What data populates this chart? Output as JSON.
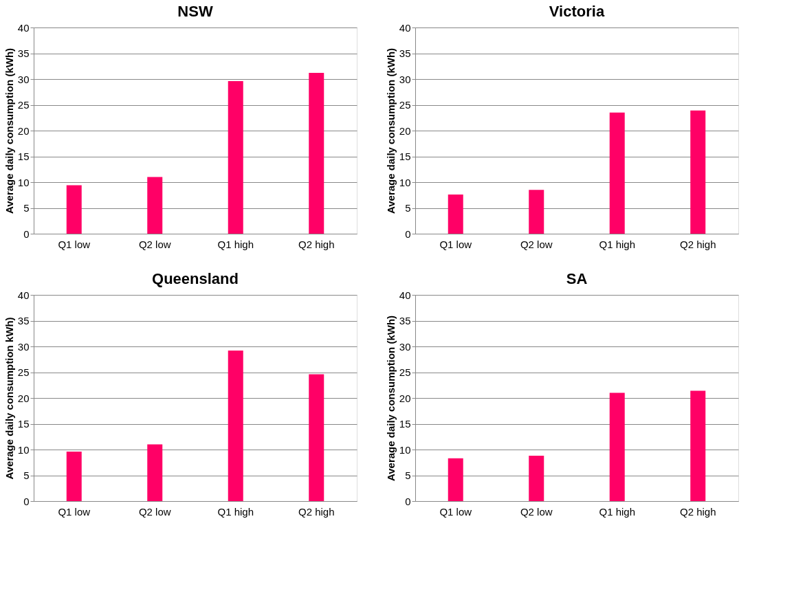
{
  "chart_data": [
    {
      "type": "bar",
      "title": "NSW",
      "ylabel": "Average daily consumption  (kWh)",
      "categories": [
        "Q1 low",
        "Q2 low",
        "Q1 high",
        "Q2 high"
      ],
      "values": [
        9.4,
        11,
        29.6,
        31.2
      ],
      "color": "#ff0066",
      "ylim": [
        0,
        40
      ],
      "yticks": [
        0,
        5,
        10,
        15,
        20,
        25,
        30,
        35,
        40
      ],
      "grid": "y"
    },
    {
      "type": "bar",
      "title": "Victoria",
      "ylabel": "Average daily consumption  (kWh)",
      "categories": [
        "Q1 low",
        "Q2 low",
        "Q1 high",
        "Q2 high"
      ],
      "values": [
        7.6,
        8.5,
        23.5,
        23.9
      ],
      "color": "#ff0066",
      "ylim": [
        0,
        40
      ],
      "yticks": [
        0,
        5,
        10,
        15,
        20,
        25,
        30,
        35,
        40
      ],
      "grid": "y"
    },
    {
      "type": "bar",
      "title": "Queensland",
      "ylabel": "Average daily consumption kWh)",
      "categories": [
        "Q1 low",
        "Q2 low",
        "Q1 high",
        "Q2 high"
      ],
      "values": [
        9.6,
        11,
        29.2,
        24.6
      ],
      "color": "#ff0066",
      "ylim": [
        0,
        40
      ],
      "yticks": [
        0,
        5,
        10,
        15,
        20,
        25,
        30,
        35,
        40
      ],
      "grid": "y"
    },
    {
      "type": "bar",
      "title": "SA",
      "ylabel": "Average daily consumption  (kWh)",
      "categories": [
        "Q1 low",
        "Q2 low",
        "Q1 high",
        "Q2 high"
      ],
      "values": [
        8.3,
        8.8,
        21,
        21.4
      ],
      "color": "#ff0066",
      "ylim": [
        0,
        40
      ],
      "yticks": [
        0,
        5,
        10,
        15,
        20,
        25,
        30,
        35,
        40
      ],
      "grid": "y"
    }
  ]
}
